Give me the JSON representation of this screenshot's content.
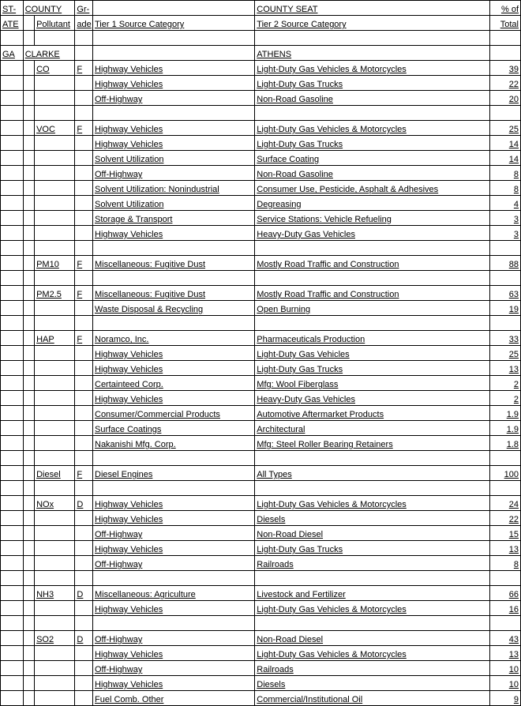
{
  "header": {
    "row1": {
      "state": "ST-",
      "county": "COUNTY",
      "grade": "Gr-",
      "tier1": "",
      "tier2": "COUNTY SEAT",
      "pct": "% of"
    },
    "row2": {
      "state": "ATE",
      "pollutant": "Pollutant",
      "grade": "ade",
      "tier1": "Tier 1 Source Category",
      "tier2": "Tier 2 Source Category",
      "pct": "Total"
    }
  },
  "region": {
    "state": "GA",
    "county": "CLARKE",
    "seat": "ATHENS"
  },
  "groups": [
    {
      "pollutant": "CO",
      "grade": "F",
      "rows": [
        {
          "t1": "Highway Vehicles",
          "t2": "Light-Duty Gas Vehicles & Motorcycles",
          "pct": "39"
        },
        {
          "t1": "Highway Vehicles",
          "t2": "Light-Duty Gas Trucks",
          "pct": "22"
        },
        {
          "t1": "Off-Highway",
          "t2": "Non-Road Gasoline",
          "pct": "20"
        }
      ]
    },
    {
      "pollutant": "VOC",
      "grade": "F",
      "rows": [
        {
          "t1": "Highway Vehicles",
          "t2": "Light-Duty Gas Vehicles & Motorcycles",
          "pct": "25"
        },
        {
          "t1": "Highway Vehicles",
          "t2": "Light-Duty Gas Trucks",
          "pct": "14"
        },
        {
          "t1": "Solvent Utilization",
          "t2": "Surface Coating",
          "pct": "14"
        },
        {
          "t1": "Off-Highway",
          "t2": "Non-Road Gasoline",
          "pct": "8"
        },
        {
          "t1": "Solvent Utilization: Nonindustrial",
          "t2": "Consumer Use, Pesticide, Asphalt & Adhesives",
          "pct": "8"
        },
        {
          "t1": "Solvent Utilization",
          "t2": "Degreasing",
          "pct": "4"
        },
        {
          "t1": "Storage & Transport",
          "t2": "Service Stations: Vehicle Refueling",
          "pct": "3"
        },
        {
          "t1": "Highway Vehicles",
          "t2": "Heavy-Duty Gas Vehicles",
          "pct": "3"
        }
      ]
    },
    {
      "pollutant": "PM10",
      "grade": "F",
      "rows": [
        {
          "t1": "Miscellaneous: Fugitive Dust",
          "t2": "Mostly Road Traffic and Construction",
          "pct": "88"
        }
      ]
    },
    {
      "pollutant": "PM2.5",
      "grade": "F",
      "rows": [
        {
          "t1": "Miscellaneous: Fugitive Dust",
          "t2": "Mostly Road Traffic and Construction",
          "pct": "63"
        },
        {
          "t1": "Waste Disposal & Recycling",
          "t2": "Open Burning",
          "pct": "19"
        }
      ]
    },
    {
      "pollutant": "HAP",
      "grade": "F",
      "rows": [
        {
          "t1": "Noramco, Inc.",
          "t2": "Pharmaceuticals Production",
          "pct": "33"
        },
        {
          "t1": "Highway Vehicles",
          "t2": "Light-Duty Gas Vehicles",
          "pct": "25"
        },
        {
          "t1": "Highway Vehicles",
          "t2": "Light-Duty Gas Trucks",
          "pct": "13"
        },
        {
          "t1": "Certainteed Corp.",
          "t2": "Mfg: Wool Fiberglass",
          "pct": "2"
        },
        {
          "t1": "Highway Vehicles",
          "t2": "Heavy-Duty Gas Vehicles",
          "pct": "2"
        },
        {
          "t1": "Consumer/Commercial Products",
          "t2": "Automotive Aftermarket Products",
          "pct": "1.9"
        },
        {
          "t1": "Surface Coatings",
          "t2": "Architectural",
          "pct": "1.9"
        },
        {
          "t1": "Nakanishi Mfg. Corp.",
          "t2": "Mfg: Steel Roller Bearing Retainers",
          "pct": "1.8"
        }
      ]
    },
    {
      "pollutant": "Diesel",
      "grade": "F",
      "rows": [
        {
          "t1": "Diesel Engines",
          "t2": "All Types",
          "pct": "100"
        }
      ]
    },
    {
      "pollutant": "NOx",
      "grade": "D",
      "rows": [
        {
          "t1": "Highway Vehicles",
          "t2": "Light-Duty Gas Vehicles & Motorcycles",
          "pct": "24"
        },
        {
          "t1": "Highway Vehicles",
          "t2": "Diesels",
          "pct": "22"
        },
        {
          "t1": "Off-Highway",
          "t2": "Non-Road Diesel",
          "pct": "15"
        },
        {
          "t1": "Highway Vehicles",
          "t2": "Light-Duty Gas Trucks",
          "pct": "13"
        },
        {
          "t1": "Off-Highway",
          "t2": "Railroads",
          "pct": "8"
        }
      ]
    },
    {
      "pollutant": "NH3",
      "grade": "D",
      "rows": [
        {
          "t1": "Miscellaneous: Agriculture",
          "t2": "Livestock and Fertilizer",
          "pct": "66"
        },
        {
          "t1": "Highway Vehicles",
          "t2": "Light-Duty Gas Vehicles & Motorcycles",
          "pct": "16"
        }
      ]
    },
    {
      "pollutant": "SO2",
      "grade": "D",
      "rows": [
        {
          "t1": "Off-Highway",
          "t2": "Non-Road Diesel",
          "pct": "43"
        },
        {
          "t1": "Highway Vehicles",
          "t2": "Light-Duty Gas Vehicles & Motorcycles",
          "pct": "13"
        },
        {
          "t1": "Off-Highway",
          "t2": "Railroads",
          "pct": "10"
        },
        {
          "t1": "Highway Vehicles",
          "t2": "Diesels",
          "pct": "10"
        },
        {
          "t1": "Fuel Comb. Other",
          "t2": "Commercial/Institutional Oil",
          "pct": "9"
        }
      ]
    }
  ]
}
